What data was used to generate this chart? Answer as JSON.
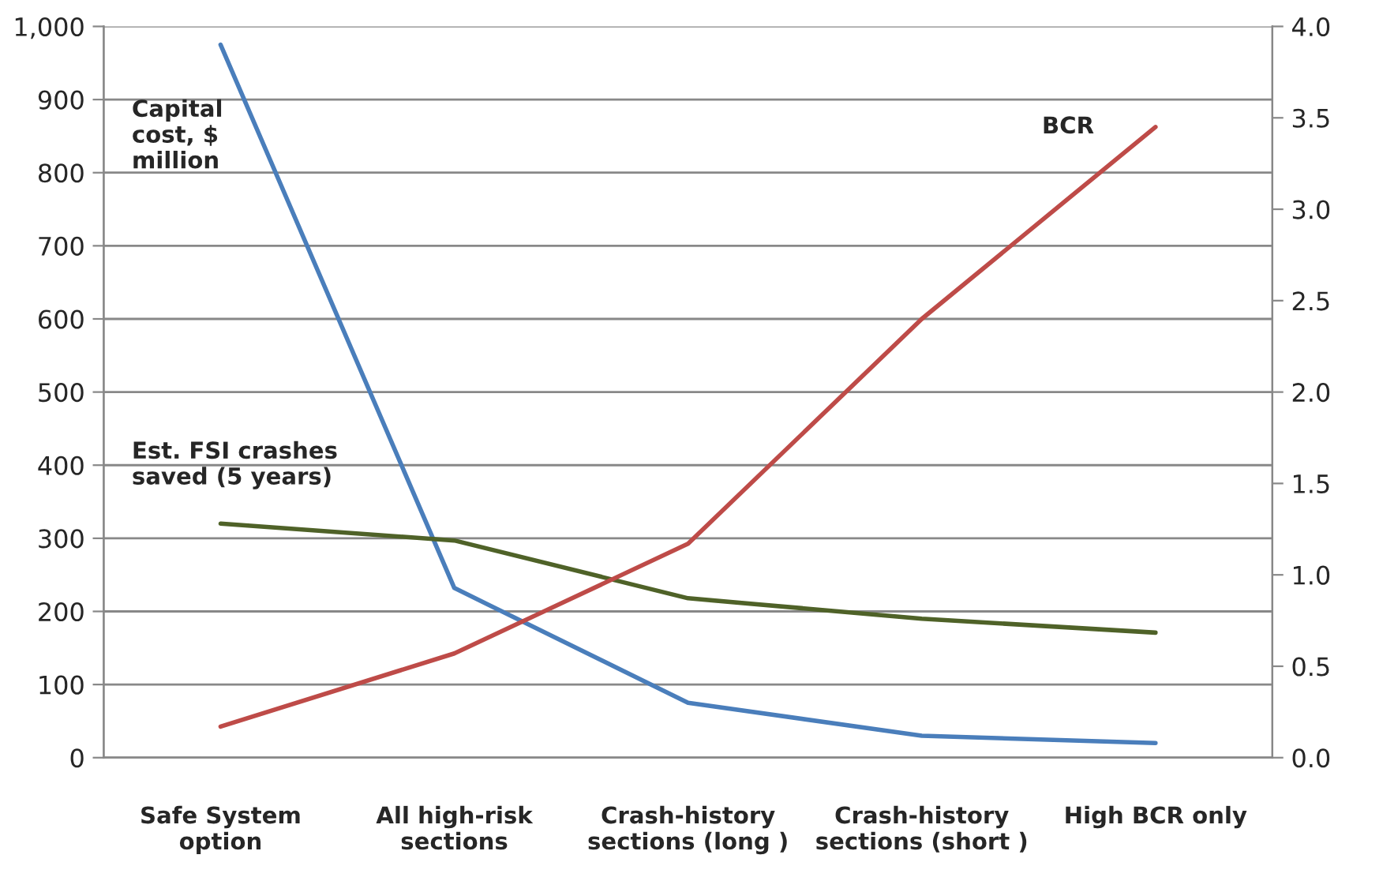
{
  "chart_data": {
    "type": "line",
    "categories": [
      "Safe System\noption",
      "All high-risk\nsections",
      "Crash-history\nsections (long )",
      "Crash-history\nsections (short )",
      "High BCR only"
    ],
    "series": [
      {
        "name": "Capital\ncost, $\nmillion",
        "color": "#4a7ebb",
        "values": [
          975,
          232,
          75,
          30,
          20
        ]
      },
      {
        "name": "Est. FSI crashes\nsaved (5 years)",
        "color": "#4f6228",
        "values": [
          320,
          297,
          218,
          190,
          171
        ]
      },
      {
        "name": "BCR",
        "color": "#be4b48",
        "values": [
          0.17,
          0.57,
          1.17,
          2.4,
          3.45
        ],
        "axis": "y2"
      }
    ],
    "ylim": [
      0,
      1000
    ],
    "yticks": [
      0,
      100,
      200,
      300,
      400,
      500,
      600,
      700,
      800,
      900,
      {
        "value": 1000,
        "label": "1,000"
      }
    ],
    "y2lim": [
      0,
      4
    ],
    "y2ticks": [
      {
        "value": 0,
        "label": "0.0"
      },
      {
        "value": 0.5,
        "label": "0.5"
      },
      {
        "value": 1,
        "label": "1.0"
      },
      {
        "value": 1.5,
        "label": "1.5"
      },
      {
        "value": 2,
        "label": "2.0"
      },
      {
        "value": 2.5,
        "label": "2.5"
      },
      {
        "value": 3,
        "label": "3.0"
      },
      {
        "value": 3.5,
        "label": "3.5"
      },
      {
        "value": 4,
        "label": "4.0"
      }
    ],
    "grid": "y",
    "legend": false,
    "marker": "none",
    "line_style": "solid"
  }
}
